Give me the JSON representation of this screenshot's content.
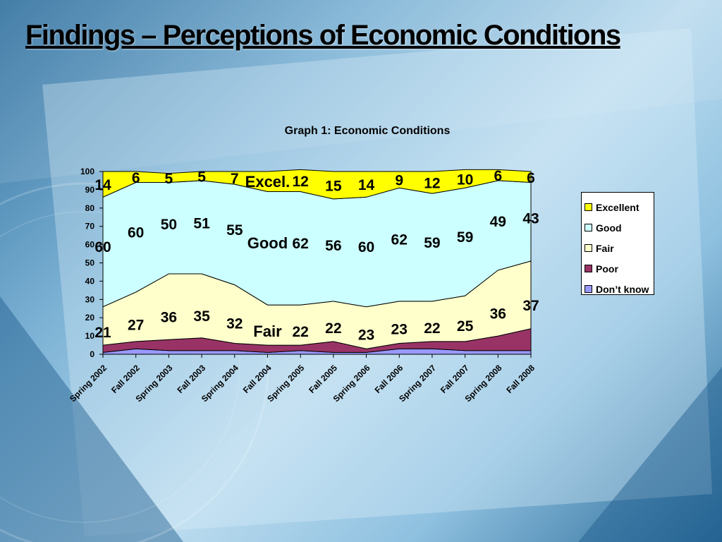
{
  "slide": {
    "title": "Findings – Perceptions of Economic Conditions"
  },
  "chart_data": {
    "type": "area",
    "stacked": true,
    "title": "Graph 1: Economic Conditions",
    "xlabel": "",
    "ylabel": "",
    "ylim": [
      0,
      100
    ],
    "yticks": [
      0,
      10,
      20,
      30,
      40,
      50,
      60,
      70,
      80,
      90,
      100
    ],
    "categories": [
      "Spring  2002",
      "Fall  2002",
      "Spring  2003",
      "Fall  2003",
      "Spring 2004",
      "Fall 2004",
      "Spring 2005",
      "Fall 2005",
      "Spring 2006",
      "Fall 2006",
      "Spring 2007",
      "Fall 2007",
      "Spring 2008",
      "Fall 2008"
    ],
    "series": [
      {
        "name": "Don’t know",
        "color": "#9999ff",
        "values": [
          1,
          3,
          2,
          2,
          2,
          1,
          2,
          1,
          1,
          3,
          3,
          2,
          2,
          2
        ],
        "labels": null
      },
      {
        "name": "Poor",
        "color": "#993366",
        "values": [
          4,
          4,
          6,
          7,
          4,
          4,
          3,
          6,
          2,
          3,
          4,
          5,
          8,
          12
        ],
        "labels": null
      },
      {
        "name": "Fair",
        "color": "#ffffcc",
        "values": [
          21,
          27,
          36,
          35,
          32,
          22,
          22,
          22,
          23,
          23,
          22,
          25,
          36,
          37
        ],
        "labels": [
          "21",
          "27",
          "36",
          "35",
          "32",
          "",
          "22",
          "22",
          "23",
          "23",
          "22",
          "25",
          "36",
          "37"
        ]
      },
      {
        "name": "Good",
        "color": "#ccffff",
        "values": [
          60,
          60,
          50,
          51,
          55,
          62,
          62,
          56,
          60,
          62,
          59,
          59,
          49,
          43
        ],
        "labels": [
          "60",
          "60",
          "50",
          "51",
          "55",
          "",
          "62",
          "56",
          "60",
          "62",
          "59",
          "59",
          "49",
          "43"
        ]
      },
      {
        "name": "Excellent",
        "color": "#ffff00",
        "values": [
          14,
          6,
          5,
          5,
          7,
          11,
          12,
          15,
          14,
          9,
          12,
          10,
          6,
          6
        ],
        "labels": [
          "14",
          "6",
          "5",
          "5",
          "7",
          "",
          "12",
          "15",
          "14",
          "9",
          "12",
          "10",
          "6",
          "6"
        ]
      }
    ],
    "annotations": [
      "Excel.",
      "Good",
      "Fair"
    ],
    "legend": {
      "position": "right",
      "order": [
        "Excellent",
        "Good",
        "Fair",
        "Poor",
        "Don’t know"
      ]
    },
    "grid": false
  }
}
